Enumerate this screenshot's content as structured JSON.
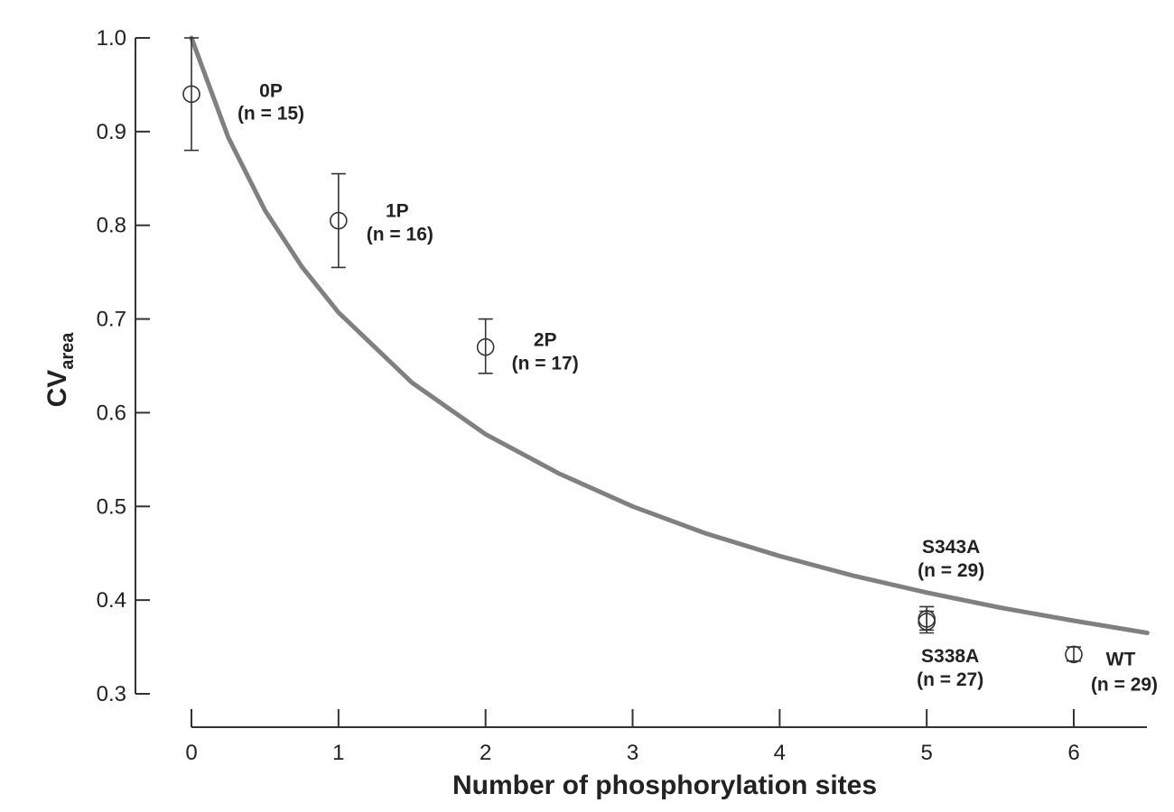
{
  "chart_data": {
    "type": "scatter",
    "xlabel": "Number of phosphorylation sites",
    "ylabel_main": "CV",
    "ylabel_sub": "area",
    "xlim": [
      0,
      6.5
    ],
    "ylim": [
      0.3,
      1.0
    ],
    "x_ticks": [
      0,
      1,
      2,
      3,
      4,
      5,
      6
    ],
    "x_tick_labels": [
      "0",
      "1",
      "2",
      "3",
      "4",
      "5",
      "6"
    ],
    "y_ticks": [
      0.3,
      0.4,
      0.5,
      0.6,
      0.7,
      0.8,
      0.9,
      1.0
    ],
    "y_tick_labels": [
      "0.3",
      "0.4",
      "0.5",
      "0.6",
      "0.7",
      "0.8",
      "0.9",
      "1.0"
    ],
    "grid": false,
    "points": [
      {
        "x": 0,
        "y": 0.94,
        "err_low": 0.88,
        "err_high": 1.0,
        "label": "0P",
        "n": "(n = 15)"
      },
      {
        "x": 1,
        "y": 0.805,
        "err_low": 0.755,
        "err_high": 0.855,
        "label": "1P",
        "n": "(n = 16)"
      },
      {
        "x": 2,
        "y": 0.67,
        "err_low": 0.642,
        "err_high": 0.7,
        "label": "2P",
        "n": "(n = 17)"
      },
      {
        "x": 5,
        "y": 0.38,
        "err_low": 0.368,
        "err_high": 0.393,
        "label": "S343A",
        "n": "(n = 29)"
      },
      {
        "x": 5,
        "y": 0.377,
        "err_low": 0.365,
        "err_high": 0.388,
        "label": "S338A",
        "n": "(n = 27)"
      },
      {
        "x": 6,
        "y": 0.342,
        "err_low": 0.335,
        "err_high": 0.35,
        "label": "WT",
        "n": "(n = 29)"
      }
    ],
    "curve": {
      "description": "theoretical curve",
      "x": [
        0,
        0.25,
        0.5,
        0.75,
        1,
        1.5,
        2,
        2.5,
        3,
        3.5,
        4,
        4.5,
        5,
        5.5,
        6,
        6.5
      ],
      "y": [
        1.0,
        0.894,
        0.816,
        0.756,
        0.707,
        0.632,
        0.577,
        0.535,
        0.5,
        0.471,
        0.447,
        0.426,
        0.408,
        0.392,
        0.378,
        0.365
      ],
      "color": "#808080"
    },
    "marker_color": "#333333"
  }
}
